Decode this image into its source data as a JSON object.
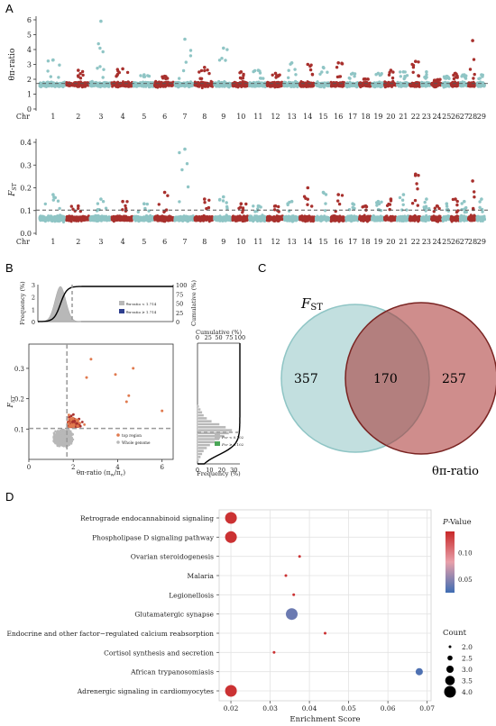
{
  "panels": {
    "a": "A",
    "b": "B",
    "c": "C",
    "d": "D"
  },
  "chr_prefix": "Chr",
  "chromosomes": [
    "1",
    "2",
    "3",
    "4",
    "5",
    "6",
    "7",
    "8",
    "9",
    "10",
    "11",
    "12",
    "13",
    "14",
    "15",
    "16",
    "17",
    "18",
    "19",
    "20",
    "21",
    "22",
    "23",
    "24",
    "25",
    "26",
    "27",
    "28",
    "29"
  ],
  "colors": {
    "teal": "#8fc5c5",
    "red": "#a8302d",
    "orange": "#e07a4f",
    "gray": "#b8b8b8",
    "navy": "#2e3f8f",
    "green": "#4aa657",
    "blue": "#3f6db3",
    "dash": "#555555"
  },
  "chart_data": [
    {
      "type": "scatter",
      "id": "manhattan_theta",
      "ylabel": "θπ-ratio",
      "ylim": [
        0,
        6
      ],
      "yticks": [
        0,
        1,
        2,
        3,
        4,
        5,
        6
      ],
      "threshold": 1.714,
      "peaks": [
        3.3,
        2.6,
        5.9,
        2.7,
        2.3,
        2.2,
        4.7,
        2.8,
        4.1,
        2.5,
        2.6,
        2.4,
        3.1,
        3.0,
        2.8,
        3.1,
        2.4,
        2.0,
        2.4,
        2.6,
        2.5,
        3.2,
        2.5,
        1.9,
        2.2,
        2.4,
        2.3,
        4.6,
        2.3
      ],
      "xlabel": "",
      "legend": "none"
    },
    {
      "type": "scatter",
      "id": "manhattan_fst",
      "ylabel": "FST",
      "ylim": [
        0,
        0.4
      ],
      "yticks": [
        0.0,
        0.1,
        0.2,
        0.3,
        0.4
      ],
      "threshold": 0.102,
      "peaks": [
        0.17,
        0.12,
        0.15,
        0.14,
        0.13,
        0.18,
        0.37,
        0.15,
        0.16,
        0.13,
        0.12,
        0.12,
        0.14,
        0.2,
        0.18,
        0.17,
        0.13,
        0.12,
        0.14,
        0.15,
        0.17,
        0.26,
        0.15,
        0.12,
        0.13,
        0.15,
        0.14,
        0.23,
        0.15
      ],
      "xlabel": "",
      "legend": "none"
    },
    {
      "type": "area",
      "id": "theta_distribution",
      "ylabel": "Frequency (%)",
      "y2label": "Cumulative (%)",
      "yticks": [
        0,
        1,
        2,
        3
      ],
      "y2ticks": [
        0,
        25,
        50,
        75,
        100
      ],
      "legend_entries": [
        "θπ-ratio < 1.714",
        "θπ-ratio ≥ 1.714"
      ],
      "legend": "right"
    },
    {
      "type": "scatter",
      "id": "fst_vs_theta",
      "xlabel": "θπ-ratio (πw/πc)",
      "ylabel": "FST",
      "xlim": [
        0,
        6.5
      ],
      "ylim": [
        0,
        0.38
      ],
      "xticks": [
        0,
        2,
        4,
        6
      ],
      "yticks": [
        0.1,
        0.2,
        0.3
      ],
      "x_threshold": 1.714,
      "y_threshold": 0.102,
      "legend_entries": [
        "top region",
        "Whole genome"
      ],
      "legend": "bottom-right"
    },
    {
      "type": "bar",
      "id": "fst_distribution",
      "xlabel": "Frequency (%)",
      "x2label": "Cumulative (%)",
      "xticks": [
        0,
        10,
        20,
        30
      ],
      "x2ticks": [
        0,
        25,
        50,
        75,
        100
      ],
      "legend_entries": [
        "FST < 0.102",
        "FST ≥ 0.102"
      ],
      "legend": "right"
    },
    {
      "type": "venn",
      "id": "venn",
      "sets": [
        {
          "name": "FST",
          "only": 357
        },
        {
          "name": "θπ-ratio",
          "only": 257
        }
      ],
      "intersection": 170
    },
    {
      "type": "scatter",
      "id": "kegg_enrichment",
      "xlabel": "Enrichment Score",
      "xlim": [
        0.017,
        0.071
      ],
      "xticks": [
        0.02,
        0.03,
        0.04,
        0.05,
        0.06,
        0.07
      ],
      "categories": [
        "Retrograde endocannabinoid signaling",
        "Phospholipase D signaling pathway",
        "Ovarian steroidogenesis",
        "Malaria",
        "Legionellosis",
        "Glutamatergic synapse",
        "Endocrine and other factor−regulated calcium reabsorption",
        "Cortisol synthesis and secretion",
        "African trypanosomiasis",
        "Adrenergic signaling in cardiomyocytes"
      ],
      "x": [
        0.02,
        0.02,
        0.0375,
        0.034,
        0.036,
        0.0355,
        0.044,
        0.031,
        0.068,
        0.02
      ],
      "count": [
        4,
        4,
        2,
        2,
        2,
        4,
        2,
        2,
        3,
        4
      ],
      "pvalue": [
        0.135,
        0.135,
        0.135,
        0.135,
        0.135,
        0.04,
        0.135,
        0.135,
        0.03,
        0.135
      ],
      "color_legend_title": "P-Value",
      "color_ticks": [
        0.1,
        0.05
      ],
      "size_legend_title": "Count",
      "size_ticks": [
        2.0,
        2.5,
        3.0,
        3.5,
        4.0
      ],
      "legend": "right"
    }
  ]
}
